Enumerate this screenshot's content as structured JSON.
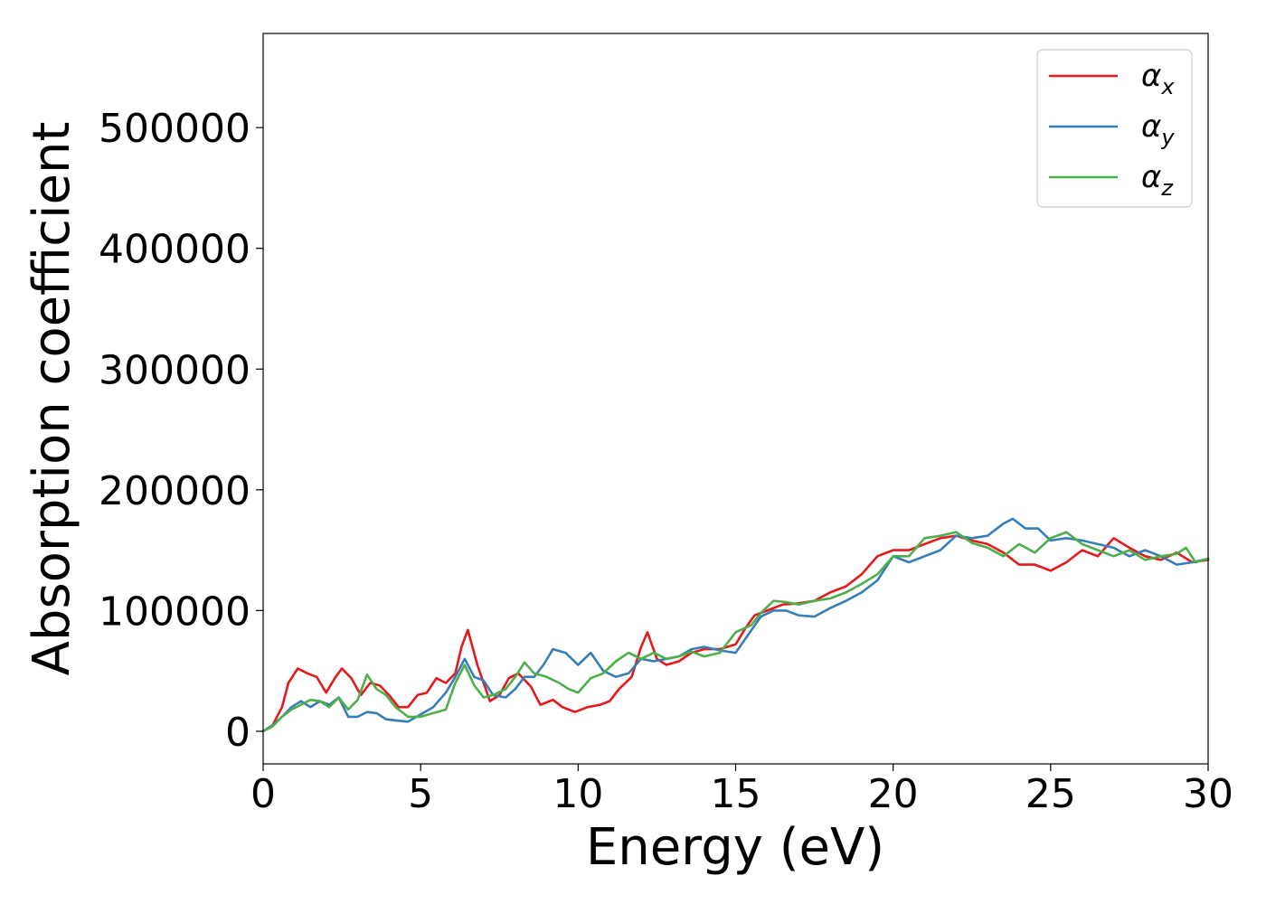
{
  "chart_data": {
    "type": "line",
    "title": "",
    "xlabel": "Energy (eV)",
    "ylabel": "Absorption coefficient",
    "xlim": [
      0,
      30
    ],
    "ylim": [
      -27000,
      578000
    ],
    "xticks": [
      0,
      5,
      10,
      15,
      20,
      25,
      30
    ],
    "xtick_labels": [
      "0",
      "5",
      "10",
      "15",
      "20",
      "25",
      "30"
    ],
    "yticks": [
      0,
      100000,
      200000,
      300000,
      400000,
      500000
    ],
    "ytick_labels": [
      "0",
      "100000",
      "200000",
      "300000",
      "400000",
      "500000"
    ],
    "grid": false,
    "legend_position": "top-right",
    "series": [
      {
        "name": "α_x",
        "legend_base": "α",
        "legend_sub": "x",
        "color": "#e41a1c",
        "points": [
          [
            0,
            0
          ],
          [
            0.3,
            5000
          ],
          [
            0.6,
            20000
          ],
          [
            0.8,
            40000
          ],
          [
            1.1,
            52000
          ],
          [
            1.4,
            48000
          ],
          [
            1.7,
            45000
          ],
          [
            2.0,
            32000
          ],
          [
            2.3,
            45000
          ],
          [
            2.5,
            52000
          ],
          [
            2.8,
            44000
          ],
          [
            3.1,
            30000
          ],
          [
            3.4,
            40000
          ],
          [
            3.7,
            38000
          ],
          [
            4.0,
            30000
          ],
          [
            4.3,
            20000
          ],
          [
            4.6,
            20000
          ],
          [
            4.9,
            30000
          ],
          [
            5.2,
            32000
          ],
          [
            5.5,
            44000
          ],
          [
            5.8,
            40000
          ],
          [
            6.1,
            48000
          ],
          [
            6.3,
            70000
          ],
          [
            6.5,
            84000
          ],
          [
            6.8,
            55000
          ],
          [
            7.2,
            25000
          ],
          [
            7.5,
            30000
          ],
          [
            7.8,
            44000
          ],
          [
            8.1,
            48000
          ],
          [
            8.5,
            37000
          ],
          [
            8.8,
            22000
          ],
          [
            9.2,
            26000
          ],
          [
            9.5,
            20000
          ],
          [
            9.9,
            16000
          ],
          [
            10.3,
            20000
          ],
          [
            10.7,
            22000
          ],
          [
            11.0,
            25000
          ],
          [
            11.3,
            35000
          ],
          [
            11.7,
            45000
          ],
          [
            12.0,
            70000
          ],
          [
            12.2,
            82000
          ],
          [
            12.5,
            60000
          ],
          [
            12.8,
            55000
          ],
          [
            13.2,
            58000
          ],
          [
            13.6,
            65000
          ],
          [
            14.0,
            68000
          ],
          [
            14.5,
            68000
          ],
          [
            15.0,
            72000
          ],
          [
            15.3,
            85000
          ],
          [
            15.6,
            96000
          ],
          [
            16.0,
            100000
          ],
          [
            16.5,
            105000
          ],
          [
            17.0,
            106000
          ],
          [
            17.5,
            108000
          ],
          [
            18.0,
            115000
          ],
          [
            18.5,
            120000
          ],
          [
            19.0,
            130000
          ],
          [
            19.5,
            145000
          ],
          [
            20.0,
            150000
          ],
          [
            20.5,
            150000
          ],
          [
            21.0,
            155000
          ],
          [
            21.5,
            160000
          ],
          [
            22.0,
            162000
          ],
          [
            22.5,
            158000
          ],
          [
            23.0,
            155000
          ],
          [
            23.5,
            148000
          ],
          [
            24.0,
            138000
          ],
          [
            24.5,
            138000
          ],
          [
            25.0,
            133000
          ],
          [
            25.5,
            140000
          ],
          [
            26.0,
            150000
          ],
          [
            26.5,
            145000
          ],
          [
            27.0,
            160000
          ],
          [
            27.5,
            152000
          ],
          [
            28.0,
            145000
          ],
          [
            28.5,
            142000
          ],
          [
            29.0,
            148000
          ],
          [
            29.5,
            140000
          ],
          [
            30.0,
            142000
          ]
        ]
      },
      {
        "name": "α_y",
        "legend_base": "α",
        "legend_sub": "y",
        "color": "#377eb8",
        "points": [
          [
            0,
            0
          ],
          [
            0.3,
            5000
          ],
          [
            0.6,
            12000
          ],
          [
            0.9,
            20000
          ],
          [
            1.2,
            25000
          ],
          [
            1.5,
            20000
          ],
          [
            1.8,
            25000
          ],
          [
            2.1,
            22000
          ],
          [
            2.4,
            28000
          ],
          [
            2.7,
            12000
          ],
          [
            3.0,
            12000
          ],
          [
            3.3,
            16000
          ],
          [
            3.6,
            15000
          ],
          [
            3.9,
            10000
          ],
          [
            4.2,
            9000
          ],
          [
            4.6,
            8000
          ],
          [
            5.0,
            14000
          ],
          [
            5.4,
            20000
          ],
          [
            5.8,
            32000
          ],
          [
            6.1,
            45000
          ],
          [
            6.4,
            60000
          ],
          [
            6.7,
            45000
          ],
          [
            7.0,
            42000
          ],
          [
            7.3,
            30000
          ],
          [
            7.7,
            28000
          ],
          [
            8.0,
            35000
          ],
          [
            8.3,
            45000
          ],
          [
            8.6,
            45000
          ],
          [
            8.9,
            55000
          ],
          [
            9.2,
            68000
          ],
          [
            9.6,
            65000
          ],
          [
            10.0,
            55000
          ],
          [
            10.4,
            65000
          ],
          [
            10.8,
            50000
          ],
          [
            11.2,
            45000
          ],
          [
            11.6,
            48000
          ],
          [
            12.0,
            60000
          ],
          [
            12.4,
            58000
          ],
          [
            12.8,
            60000
          ],
          [
            13.2,
            62000
          ],
          [
            13.6,
            68000
          ],
          [
            14.0,
            70000
          ],
          [
            14.5,
            67000
          ],
          [
            15.0,
            65000
          ],
          [
            15.4,
            80000
          ],
          [
            15.8,
            95000
          ],
          [
            16.2,
            100000
          ],
          [
            16.6,
            100000
          ],
          [
            17.0,
            96000
          ],
          [
            17.5,
            95000
          ],
          [
            18.0,
            102000
          ],
          [
            18.5,
            108000
          ],
          [
            19.0,
            115000
          ],
          [
            19.5,
            125000
          ],
          [
            20.0,
            145000
          ],
          [
            20.5,
            140000
          ],
          [
            21.0,
            145000
          ],
          [
            21.5,
            150000
          ],
          [
            22.0,
            162000
          ],
          [
            22.5,
            160000
          ],
          [
            23.0,
            162000
          ],
          [
            23.5,
            172000
          ],
          [
            23.8,
            176000
          ],
          [
            24.2,
            168000
          ],
          [
            24.6,
            168000
          ],
          [
            25.0,
            158000
          ],
          [
            25.5,
            160000
          ],
          [
            26.0,
            158000
          ],
          [
            26.5,
            155000
          ],
          [
            27.0,
            152000
          ],
          [
            27.5,
            145000
          ],
          [
            28.0,
            150000
          ],
          [
            28.5,
            145000
          ],
          [
            29.0,
            138000
          ],
          [
            29.5,
            140000
          ],
          [
            30.0,
            143000
          ]
        ]
      },
      {
        "name": "α_z",
        "legend_base": "α",
        "legend_sub": "z",
        "color": "#4daf4a",
        "points": [
          [
            0,
            0
          ],
          [
            0.3,
            4000
          ],
          [
            0.6,
            12000
          ],
          [
            0.9,
            18000
          ],
          [
            1.2,
            22000
          ],
          [
            1.5,
            26000
          ],
          [
            1.8,
            25000
          ],
          [
            2.1,
            20000
          ],
          [
            2.4,
            28000
          ],
          [
            2.7,
            18000
          ],
          [
            3.0,
            26000
          ],
          [
            3.3,
            47000
          ],
          [
            3.6,
            35000
          ],
          [
            3.9,
            30000
          ],
          [
            4.2,
            20000
          ],
          [
            4.6,
            12000
          ],
          [
            5.0,
            12000
          ],
          [
            5.4,
            15000
          ],
          [
            5.8,
            18000
          ],
          [
            6.1,
            40000
          ],
          [
            6.4,
            55000
          ],
          [
            6.7,
            38000
          ],
          [
            7.0,
            28000
          ],
          [
            7.3,
            30000
          ],
          [
            7.7,
            35000
          ],
          [
            8.0,
            45000
          ],
          [
            8.3,
            57000
          ],
          [
            8.6,
            48000
          ],
          [
            9.0,
            45000
          ],
          [
            9.4,
            40000
          ],
          [
            9.7,
            35000
          ],
          [
            10.0,
            32000
          ],
          [
            10.4,
            44000
          ],
          [
            10.8,
            48000
          ],
          [
            11.2,
            58000
          ],
          [
            11.6,
            65000
          ],
          [
            12.0,
            60000
          ],
          [
            12.4,
            65000
          ],
          [
            12.8,
            60000
          ],
          [
            13.2,
            62000
          ],
          [
            13.6,
            66000
          ],
          [
            14.0,
            62000
          ],
          [
            14.5,
            65000
          ],
          [
            15.0,
            82000
          ],
          [
            15.5,
            88000
          ],
          [
            15.8,
            98000
          ],
          [
            16.2,
            108000
          ],
          [
            16.6,
            107000
          ],
          [
            17.0,
            105000
          ],
          [
            17.5,
            108000
          ],
          [
            18.0,
            110000
          ],
          [
            18.5,
            115000
          ],
          [
            19.0,
            122000
          ],
          [
            19.5,
            130000
          ],
          [
            20.0,
            145000
          ],
          [
            20.5,
            145000
          ],
          [
            21.0,
            160000
          ],
          [
            21.5,
            162000
          ],
          [
            22.0,
            165000
          ],
          [
            22.5,
            156000
          ],
          [
            23.0,
            152000
          ],
          [
            23.5,
            145000
          ],
          [
            24.0,
            155000
          ],
          [
            24.5,
            148000
          ],
          [
            25.0,
            160000
          ],
          [
            25.5,
            165000
          ],
          [
            26.0,
            155000
          ],
          [
            26.5,
            150000
          ],
          [
            27.0,
            145000
          ],
          [
            27.5,
            150000
          ],
          [
            28.0,
            142000
          ],
          [
            28.5,
            145000
          ],
          [
            29.0,
            147000
          ],
          [
            29.3,
            152000
          ],
          [
            29.6,
            140000
          ],
          [
            30.0,
            143000
          ]
        ]
      }
    ]
  }
}
